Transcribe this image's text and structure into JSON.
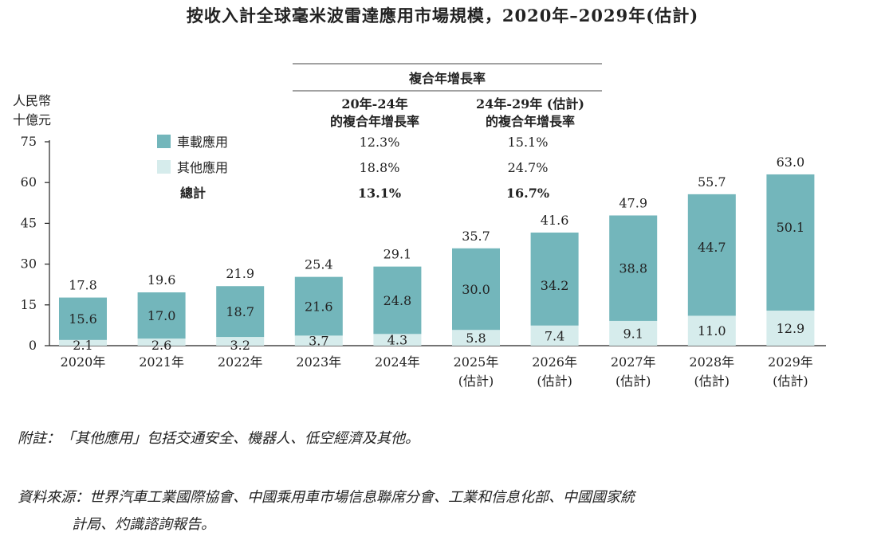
{
  "title": "按收入計全球毫米波雷達應用市場規模，2020年–2029年(估計)",
  "colors": {
    "automotive": "#73b6bb",
    "other": "#d6ecec",
    "axis": "#222222",
    "text": "#222222"
  },
  "chart_data": {
    "type": "bar",
    "stacked": true,
    "categories": [
      "2020年",
      "2021年",
      "2022年",
      "2023年",
      "2024年",
      "2025年",
      "2026年",
      "2027年",
      "2028年",
      "2029年"
    ],
    "category_sublabels": [
      "",
      "",
      "",
      "",
      "",
      "(估計)",
      "(估計)",
      "(估計)",
      "(估計)",
      "(估計)"
    ],
    "series": [
      {
        "name": "其他應用",
        "color": "#d6ecec",
        "values": [
          2.1,
          2.6,
          3.2,
          3.7,
          4.3,
          5.8,
          7.4,
          9.1,
          11.0,
          12.9
        ]
      },
      {
        "name": "車載應用",
        "color": "#73b6bb",
        "values": [
          15.6,
          17.0,
          18.7,
          21.6,
          24.8,
          30.0,
          34.2,
          38.8,
          44.7,
          50.1
        ]
      }
    ],
    "totals": [
      17.8,
      19.6,
      21.9,
      25.4,
      29.1,
      35.7,
      41.6,
      47.9,
      55.7,
      63.0
    ],
    "ylabel_line1": "人民幣",
    "ylabel_line2": "十億元",
    "ylim": [
      0,
      75
    ],
    "yticks": [
      0,
      15,
      30,
      45,
      60,
      75
    ],
    "cagr_table": {
      "header": "複合年增長率",
      "col1_line1": "20年-24年",
      "col1_line2": "的複合年增長率",
      "col2_line1": "24年-29年 (估計)",
      "col2_line2": "的複合年增長率",
      "rows": [
        {
          "label": "車載應用",
          "c1": "12.3%",
          "c2": "15.1%"
        },
        {
          "label": "其他應用",
          "c1": "18.8%",
          "c2": "24.7%"
        },
        {
          "label": "總計",
          "c1": "13.1%",
          "c2": "16.7%"
        }
      ]
    }
  },
  "note": "附註：「其他應用」包括交通安全、機器人、低空經濟及其他。",
  "source_line1": "資料來源：世界汽車工業國際協會、中國乘用車市場信息聯席分會、工業和信息化部、中國國家統",
  "source_line2": "計局、灼識諮詢報告。"
}
